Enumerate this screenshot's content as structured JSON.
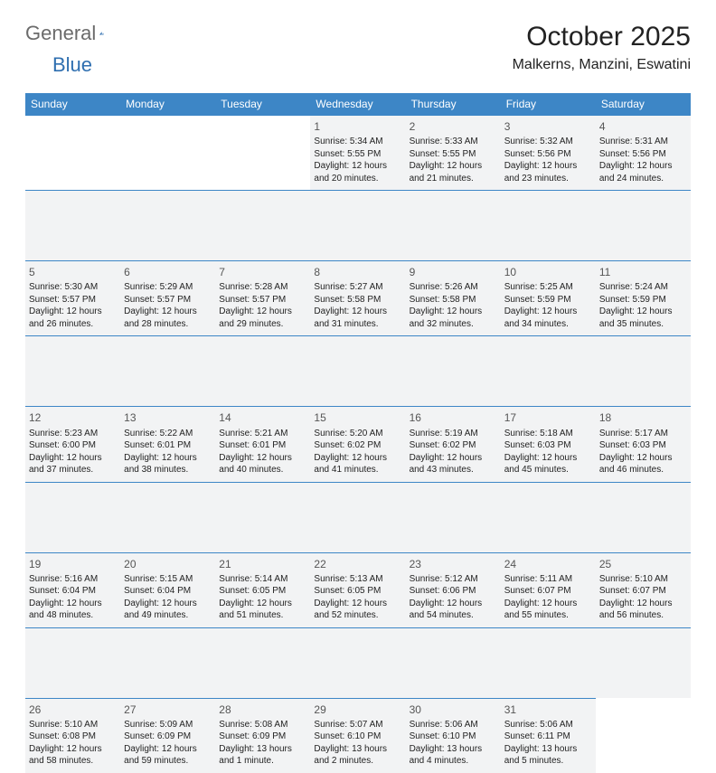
{
  "brand": {
    "part1": "General",
    "part2": "Blue"
  },
  "title": "October 2025",
  "location": "Malkerns, Manzini, Eswatini",
  "colors": {
    "header_bg": "#3d86c6",
    "header_text": "#ffffff",
    "cell_bg": "#f2f3f4",
    "divider": "#3d86c6",
    "title_color": "#222222",
    "logo_gray": "#6b6b6b",
    "logo_blue": "#2f6fb0"
  },
  "day_headers": [
    "Sunday",
    "Monday",
    "Tuesday",
    "Wednesday",
    "Thursday",
    "Friday",
    "Saturday"
  ],
  "weeks": [
    [
      null,
      null,
      null,
      {
        "n": "1",
        "sr": "5:34 AM",
        "ss": "5:55 PM",
        "dl": "12 hours and 20 minutes."
      },
      {
        "n": "2",
        "sr": "5:33 AM",
        "ss": "5:55 PM",
        "dl": "12 hours and 21 minutes."
      },
      {
        "n": "3",
        "sr": "5:32 AM",
        "ss": "5:56 PM",
        "dl": "12 hours and 23 minutes."
      },
      {
        "n": "4",
        "sr": "5:31 AM",
        "ss": "5:56 PM",
        "dl": "12 hours and 24 minutes."
      }
    ],
    [
      {
        "n": "5",
        "sr": "5:30 AM",
        "ss": "5:57 PM",
        "dl": "12 hours and 26 minutes."
      },
      {
        "n": "6",
        "sr": "5:29 AM",
        "ss": "5:57 PM",
        "dl": "12 hours and 28 minutes."
      },
      {
        "n": "7",
        "sr": "5:28 AM",
        "ss": "5:57 PM",
        "dl": "12 hours and 29 minutes."
      },
      {
        "n": "8",
        "sr": "5:27 AM",
        "ss": "5:58 PM",
        "dl": "12 hours and 31 minutes."
      },
      {
        "n": "9",
        "sr": "5:26 AM",
        "ss": "5:58 PM",
        "dl": "12 hours and 32 minutes."
      },
      {
        "n": "10",
        "sr": "5:25 AM",
        "ss": "5:59 PM",
        "dl": "12 hours and 34 minutes."
      },
      {
        "n": "11",
        "sr": "5:24 AM",
        "ss": "5:59 PM",
        "dl": "12 hours and 35 minutes."
      }
    ],
    [
      {
        "n": "12",
        "sr": "5:23 AM",
        "ss": "6:00 PM",
        "dl": "12 hours and 37 minutes."
      },
      {
        "n": "13",
        "sr": "5:22 AM",
        "ss": "6:01 PM",
        "dl": "12 hours and 38 minutes."
      },
      {
        "n": "14",
        "sr": "5:21 AM",
        "ss": "6:01 PM",
        "dl": "12 hours and 40 minutes."
      },
      {
        "n": "15",
        "sr": "5:20 AM",
        "ss": "6:02 PM",
        "dl": "12 hours and 41 minutes."
      },
      {
        "n": "16",
        "sr": "5:19 AM",
        "ss": "6:02 PM",
        "dl": "12 hours and 43 minutes."
      },
      {
        "n": "17",
        "sr": "5:18 AM",
        "ss": "6:03 PM",
        "dl": "12 hours and 45 minutes."
      },
      {
        "n": "18",
        "sr": "5:17 AM",
        "ss": "6:03 PM",
        "dl": "12 hours and 46 minutes."
      }
    ],
    [
      {
        "n": "19",
        "sr": "5:16 AM",
        "ss": "6:04 PM",
        "dl": "12 hours and 48 minutes."
      },
      {
        "n": "20",
        "sr": "5:15 AM",
        "ss": "6:04 PM",
        "dl": "12 hours and 49 minutes."
      },
      {
        "n": "21",
        "sr": "5:14 AM",
        "ss": "6:05 PM",
        "dl": "12 hours and 51 minutes."
      },
      {
        "n": "22",
        "sr": "5:13 AM",
        "ss": "6:05 PM",
        "dl": "12 hours and 52 minutes."
      },
      {
        "n": "23",
        "sr": "5:12 AM",
        "ss": "6:06 PM",
        "dl": "12 hours and 54 minutes."
      },
      {
        "n": "24",
        "sr": "5:11 AM",
        "ss": "6:07 PM",
        "dl": "12 hours and 55 minutes."
      },
      {
        "n": "25",
        "sr": "5:10 AM",
        "ss": "6:07 PM",
        "dl": "12 hours and 56 minutes."
      }
    ],
    [
      {
        "n": "26",
        "sr": "5:10 AM",
        "ss": "6:08 PM",
        "dl": "12 hours and 58 minutes."
      },
      {
        "n": "27",
        "sr": "5:09 AM",
        "ss": "6:09 PM",
        "dl": "12 hours and 59 minutes."
      },
      {
        "n": "28",
        "sr": "5:08 AM",
        "ss": "6:09 PM",
        "dl": "13 hours and 1 minute."
      },
      {
        "n": "29",
        "sr": "5:07 AM",
        "ss": "6:10 PM",
        "dl": "13 hours and 2 minutes."
      },
      {
        "n": "30",
        "sr": "5:06 AM",
        "ss": "6:10 PM",
        "dl": "13 hours and 4 minutes."
      },
      {
        "n": "31",
        "sr": "5:06 AM",
        "ss": "6:11 PM",
        "dl": "13 hours and 5 minutes."
      },
      null
    ]
  ],
  "labels": {
    "sunrise": "Sunrise: ",
    "sunset": "Sunset: ",
    "daylight": "Daylight: "
  }
}
